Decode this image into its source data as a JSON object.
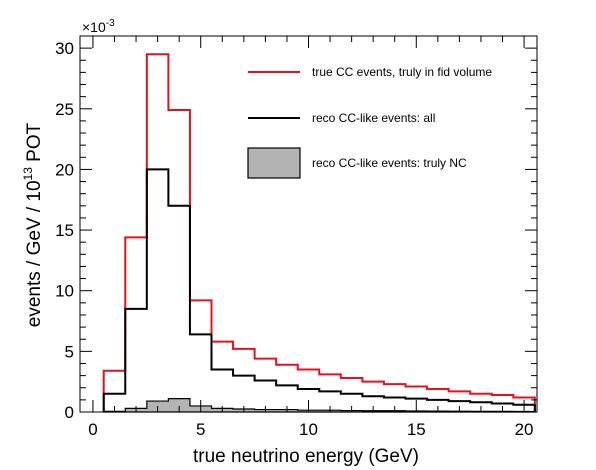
{
  "chart_data": {
    "type": "step-histogram",
    "xlabel": "true neutrino energy (GeV)",
    "ylabel_parts": {
      "prefix": "events / GeV /  10",
      "exponent": "13",
      "suffix": " POT"
    },
    "y_multiplier": {
      "base": "×10",
      "exponent": "-3"
    },
    "xlim": [
      -0.6,
      20.6
    ],
    "ylim": [
      0,
      31
    ],
    "x_ticks": [
      0,
      5,
      10,
      15,
      20
    ],
    "y_ticks": [
      0,
      5,
      10,
      15,
      20,
      25,
      30
    ],
    "bin_edges": [
      0.5,
      1.5,
      2.5,
      3.5,
      4.5,
      5.5,
      6.5,
      7.5,
      8.5,
      9.5,
      10.5,
      11.5,
      12.5,
      13.5,
      14.5,
      15.5,
      16.5,
      17.5,
      18.5,
      19.5,
      20.5
    ],
    "series": [
      {
        "name": "true CC events, truly in fid volume",
        "color": "#e8101e",
        "style": "line",
        "values": [
          3.4,
          14.4,
          29.5,
          24.9,
          9.2,
          5.8,
          5.2,
          4.4,
          3.9,
          3.5,
          3.1,
          2.8,
          2.5,
          2.3,
          2.1,
          1.9,
          1.7,
          1.5,
          1.4,
          1.2
        ]
      },
      {
        "name": "reco CC-like events: all",
        "color": "#000000",
        "style": "line",
        "values": [
          1.5,
          8.5,
          20.0,
          17.0,
          6.4,
          3.5,
          3.0,
          2.6,
          2.2,
          1.9,
          1.7,
          1.5,
          1.3,
          1.2,
          1.1,
          1.0,
          0.9,
          0.8,
          0.7,
          0.6
        ]
      },
      {
        "name": "reco CC-like events: truly NC",
        "color": "#b3b3b3",
        "style": "filled",
        "values": [
          0.05,
          0.3,
          0.9,
          1.1,
          0.5,
          0.3,
          0.25,
          0.2,
          0.2,
          0.15,
          0.15,
          0.12,
          0.1,
          0.1,
          0.08,
          0.07,
          0.06,
          0.05,
          0.05,
          0.04
        ]
      }
    ],
    "legend_position": "top-right",
    "grid": false
  }
}
